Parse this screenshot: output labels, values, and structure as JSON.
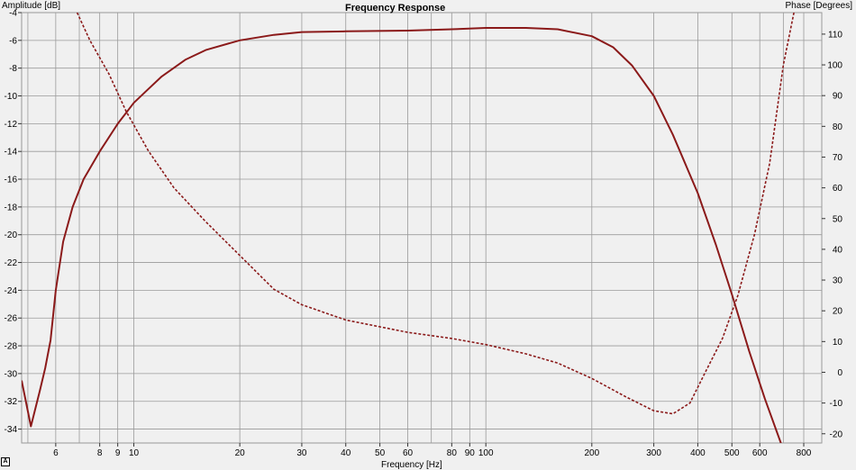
{
  "chart_data": {
    "type": "line",
    "title": "Frequency Response",
    "xlabel": "Frequency [Hz]",
    "ylabel_left": "Amplitude [dB]",
    "ylabel_right": "Phase [Degrees]",
    "xscale": "log",
    "xlim": [
      4.8,
      900
    ],
    "ylim_left": [
      -35,
      -4
    ],
    "ylim_right": [
      -23,
      117
    ],
    "grid": true,
    "x_ticks": [
      6,
      8,
      9,
      10,
      20,
      30,
      40,
      50,
      60,
      80,
      90,
      100,
      200,
      300,
      400,
      500,
      600,
      800
    ],
    "y_ticks_left": [
      -4,
      -6,
      -8,
      -10,
      -12,
      -14,
      -16,
      -18,
      -20,
      -22,
      -24,
      -26,
      -28,
      -30,
      -32,
      -34
    ],
    "y_ticks_right": [
      110,
      100,
      90,
      80,
      70,
      60,
      50,
      40,
      30,
      20,
      10,
      0,
      -10,
      -20
    ],
    "series": [
      {
        "style": "solid",
        "axis": "left",
        "color": "#8b1a1a",
        "x": [
          4.8,
          5.1,
          5.4,
          5.6,
          5.8,
          6.0,
          6.3,
          6.7,
          7.2,
          8,
          9,
          10,
          11,
          12,
          14,
          16,
          20,
          25,
          30,
          40,
          60,
          80,
          100,
          130,
          160,
          200,
          230,
          260,
          300,
          340,
          400,
          450,
          500,
          560,
          620,
          700
        ],
        "y": [
          -30.5,
          -33.8,
          -31.3,
          -29.6,
          -27.6,
          -24,
          -20.5,
          -18,
          -16,
          -14,
          -12,
          -10.5,
          -9.5,
          -8.6,
          -7.4,
          -6.7,
          -6,
          -5.6,
          -5.4,
          -5.35,
          -5.3,
          -5.2,
          -5.1,
          -5.1,
          -5.2,
          -5.7,
          -6.5,
          -7.8,
          -10,
          -12.8,
          -17,
          -20.7,
          -24.3,
          -28.4,
          -31.8,
          -35.5
        ]
      },
      {
        "style": "dashed",
        "axis": "right",
        "color": "#8b1a1a",
        "x": [
          6.9,
          7.5,
          8.5,
          9.5,
          11,
          13,
          16,
          20,
          25,
          30,
          40,
          60,
          80,
          100,
          130,
          160,
          200,
          250,
          300,
          340,
          380,
          420,
          470,
          520,
          580,
          640,
          700,
          750
        ],
        "y": [
          117,
          108,
          97,
          85,
          72,
          60,
          49,
          38,
          27,
          22,
          17,
          13,
          11,
          9,
          6,
          3,
          -2,
          -8,
          -12.5,
          -13.5,
          -10,
          0,
          11,
          25,
          45,
          68,
          100,
          117
        ]
      }
    ]
  }
}
